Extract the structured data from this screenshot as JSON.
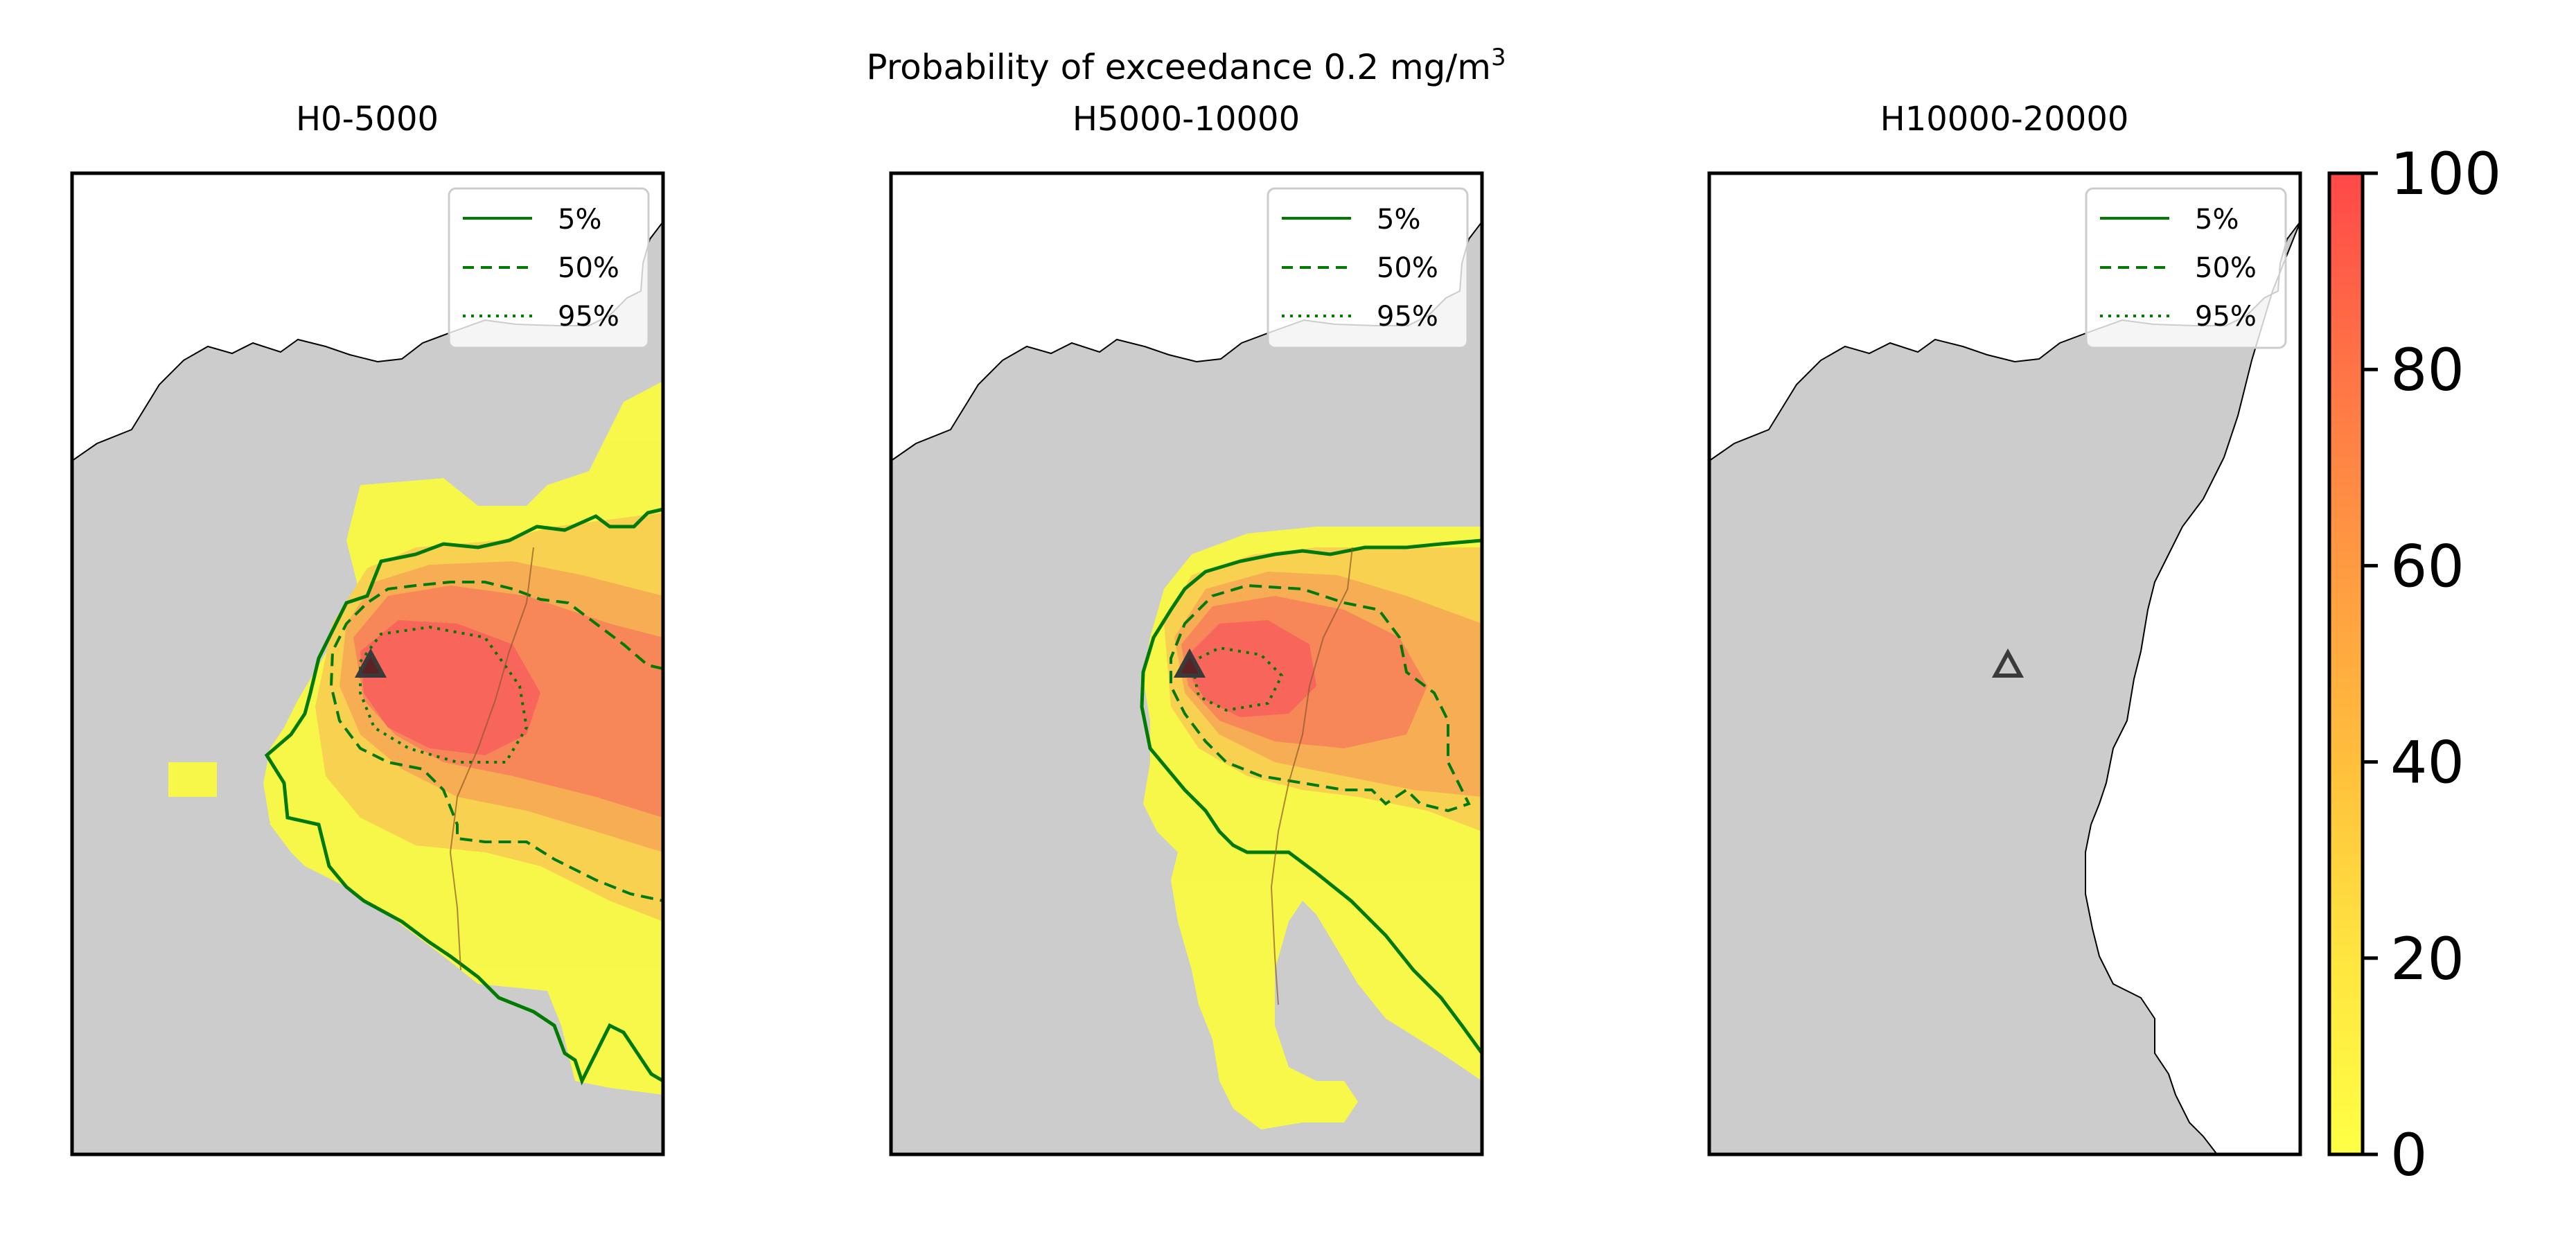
{
  "suptitle": {
    "text": "Probability of exceedance 0.2 mg/m",
    "superscript": "3"
  },
  "panels": [
    {
      "title": "H0-5000"
    },
    {
      "title": "H5000-10000"
    },
    {
      "title": "H10000-20000"
    }
  ],
  "legend": {
    "entries": [
      {
        "label": "5%",
        "style": "solid"
      },
      {
        "label": "50%",
        "style": "dashed"
      },
      {
        "label": "95%",
        "style": "dotted"
      }
    ]
  },
  "colorbar": {
    "ticks": [
      "0",
      "20",
      "40",
      "60",
      "80",
      "100"
    ],
    "range": [
      0,
      100
    ],
    "colors": [
      "#ffff44",
      "#ffe540",
      "#ffcb3c",
      "#ffb238",
      "#ff9a40",
      "#ff8244",
      "#ff6a48",
      "#ff524a"
    ]
  },
  "colors": {
    "land": "#cccccc",
    "sea": "#ffffff",
    "contour": "#007a00",
    "vent_marker": "#3a3a3a"
  }
}
